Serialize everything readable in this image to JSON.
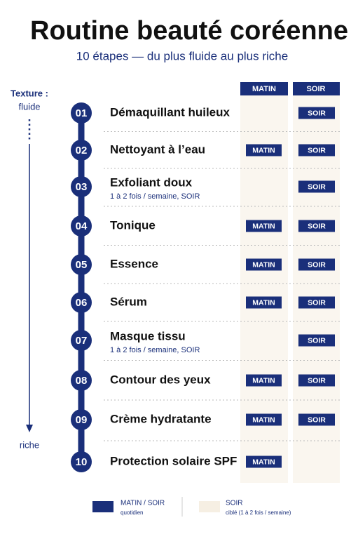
{
  "header": {
    "title": "Routine beauté coréenne",
    "subtitle": "10 étapes — du plus fluide au plus riche"
  },
  "columns": {
    "matin": "MATIN",
    "soir": "SOIR"
  },
  "texture": {
    "label": "Texture :",
    "top": "fluide",
    "bottom": "riche"
  },
  "steps": [
    {
      "number": "01",
      "name": "Démaquillant huileux",
      "soir": "SOIR"
    },
    {
      "number": "02",
      "name": "Nettoyant à l’eau",
      "matin": "MATIN",
      "soir": "SOIR"
    },
    {
      "number": "03",
      "name": "Exfoliant doux",
      "note": "1 à 2 fois / semaine, SOIR",
      "soir": "SOIR"
    },
    {
      "number": "04",
      "name": "Tonique",
      "matin": "MATIN",
      "soir": "SOIR"
    },
    {
      "number": "05",
      "name": "Essence",
      "matin": "MATIN",
      "soir": "SOIR"
    },
    {
      "number": "06",
      "name": "Sérum",
      "matin": "MATIN",
      "soir": "SOIR"
    },
    {
      "number": "07",
      "name": "Masque tissu",
      "note": "1 à 2 fois / semaine, SOIR",
      "soir": "SOIR"
    },
    {
      "number": "08",
      "name": "Contour des yeux",
      "matin": "MATIN",
      "soir": "SOIR"
    },
    {
      "number": "09",
      "name": "Crème hydratante",
      "matin": "MATIN",
      "soir": "SOIR"
    },
    {
      "number": "10",
      "name": "Protection solaire SPF",
      "matin": "MATIN"
    }
  ],
  "legend": [
    {
      "label": "MATIN / SOIR",
      "detail": "quotidien"
    },
    {
      "label": "SOIR",
      "detail": "ciblé (1 à 2 fois / semaine)"
    }
  ]
}
